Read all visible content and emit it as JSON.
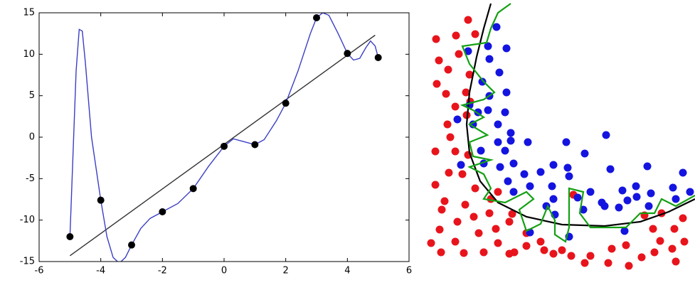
{
  "chart_data": [
    {
      "type": "line",
      "xlim": [
        -6,
        6
      ],
      "ylim": [
        -15,
        15
      ],
      "xticks": [
        -6,
        -4,
        -2,
        0,
        2,
        4,
        6
      ],
      "yticks": [
        -15,
        -10,
        -5,
        0,
        5,
        10,
        15
      ],
      "series": [
        {
          "mode": "line",
          "color": "#333333",
          "x": [
            -5,
            4.9
          ],
          "values": [
            -14.3,
            12.3
          ]
        },
        {
          "mode": "line",
          "color": "#3a3fc4",
          "x": [
            -5,
            -4.9,
            -4.8,
            -4.7,
            -4.6,
            -4.5,
            -4.3,
            -4,
            -3.8,
            -3.6,
            -3.4,
            -3.2,
            -3,
            -2.7,
            -2.4,
            -2,
            -1.5,
            -1,
            -0.5,
            0,
            0.3,
            0.6,
            1,
            1.3,
            1.7,
            2,
            2.4,
            2.8,
            3,
            3.2,
            3.4,
            3.7,
            4,
            4.2,
            4.4,
            4.6,
            4.75,
            4.9,
            5
          ],
          "values": [
            -12,
            -2,
            8,
            13,
            12.8,
            9,
            0,
            -7.6,
            -12,
            -14.5,
            -15.2,
            -14.5,
            -13,
            -11,
            -9.8,
            -9,
            -8,
            -6.2,
            -3.5,
            -1.1,
            -0.2,
            -0.5,
            -0.9,
            -0.3,
            2,
            4.1,
            8,
            12.5,
            14.4,
            15,
            14.7,
            12.5,
            10.1,
            9.3,
            9.5,
            10.8,
            11.6,
            11,
            9.6
          ]
        },
        {
          "mode": "markers",
          "color": "#000000",
          "x": [
            -5,
            -4,
            -3,
            -2,
            -1,
            0,
            1,
            2,
            3,
            4,
            5
          ],
          "values": [
            -12,
            -7.6,
            -13,
            -9,
            -6.2,
            -1.1,
            -0.9,
            4.1,
            14.4,
            10.1,
            9.6
          ]
        }
      ]
    },
    {
      "type": "scatter",
      "xlim": [
        0,
        377
      ],
      "ylim": [
        0,
        400
      ],
      "series": [
        {
          "mode": "markers",
          "color": "#e8141c",
          "x": [
            58,
            41,
            13,
            68,
            17,
            45,
            30,
            60,
            14,
            27,
            55,
            61,
            40,
            29,
            56,
            33,
            12,
            40,
            58,
            31,
            12,
            50,
            68,
            25,
            21,
            54,
            90,
            18,
            43,
            66,
            6,
            40,
            73,
            20,
            52,
            80,
            100,
            116,
            123,
            140,
            160,
            165,
            178,
            190,
            203,
            222,
            230,
            255,
            284,
            260,
            280,
            302,
            320,
            345,
            350,
            328,
            362,
            348,
            318,
            360,
            306,
            330,
            97,
            116,
            140,
            88,
            100,
            206,
            120
          ],
          "values": [
            372,
            350,
            345,
            352,
            315,
            324,
            302,
            295,
            282,
            268,
            270,
            257,
            250,
            225,
            238,
            207,
            187,
            187,
            182,
            157,
            140,
            155,
            135,
            117,
            105,
            112,
            120,
            77,
            88,
            95,
            58,
            60,
            72,
            45,
            44,
            45,
            58,
            43,
            45,
            54,
            60,
            48,
            43,
            48,
            40,
            30,
            40,
            30,
            26,
            50,
            55,
            38,
            45,
            50,
            32,
            61,
            60,
            78,
            78,
            93,
            97,
            100,
            78,
            88,
            72,
            100,
            130,
            126,
            99
          ]
        },
        {
          "mode": "markers",
          "color": "#1414e0",
          "x": [
            98,
            86,
            112,
            58,
            88,
            102,
            78,
            112,
            88,
            60,
            43,
            72,
            86,
            110,
            65,
            100,
            118,
            118,
            100,
            142,
            76,
            110,
            196,
            252,
            222,
            48,
            80,
            103,
            122,
            160,
            178,
            137,
            198,
            200,
            258,
            310,
            360,
            114,
            122,
            145,
            176,
            178,
            212,
            230,
            246,
            275,
            294,
            315,
            346,
            370,
            282,
            295,
            168,
            180,
            220,
            250,
            270,
            312,
            350,
            145,
            200,
            278
          ],
          "values": [
            362,
            335,
            332,
            328,
            317,
            298,
            285,
            270,
            265,
            252,
            232,
            242,
            245,
            242,
            225,
            225,
            213,
            202,
            200,
            200,
            188,
            188,
            200,
            210,
            184,
            168,
            170,
            165,
            170,
            158,
            168,
            155,
            164,
            152,
            162,
            166,
            157,
            145,
            130,
            138,
            138,
            120,
            122,
            130,
            115,
            132,
            138,
            128,
            136,
            130,
            118,
            123,
            110,
            98,
            105,
            110,
            108,
            110,
            120,
            73,
            67,
            75
          ]
        },
        {
          "mode": "line",
          "color": "#000000",
          "x": [
            90,
            80,
            70,
            60,
            56,
            60,
            75,
            100,
            140,
            190,
            250,
            300,
            340,
            377
          ],
          "values": [
            395,
            360,
            320,
            270,
            225,
            185,
            145,
            115,
            95,
            84,
            82,
            88,
            102,
            120
          ]
        },
        {
          "mode": "line",
          "color": "#13a013",
          "x": [
            118,
            100,
            90,
            84,
            50,
            60,
            80,
            95,
            80,
            50,
            65,
            80,
            60,
            85,
            60,
            65,
            90,
            60,
            80,
            90,
            80,
            110,
            140,
            150,
            130,
            140,
            160,
            170,
            180,
            180,
            195,
            200,
            200,
            220,
            215,
            230,
            245,
            280,
            300,
            320,
            330,
            350,
            377
          ],
          "values": [
            395,
            382,
            360,
            340,
            335,
            310,
            285,
            270,
            260,
            252,
            245,
            235,
            225,
            210,
            200,
            180,
            175,
            165,
            155,
            135,
            120,
            115,
            130,
            120,
            105,
            75,
            85,
            110,
            90,
            70,
            60,
            80,
            135,
            130,
            100,
            80,
            80,
            80,
            100,
            100,
            120,
            110,
            125
          ]
        }
      ]
    }
  ]
}
